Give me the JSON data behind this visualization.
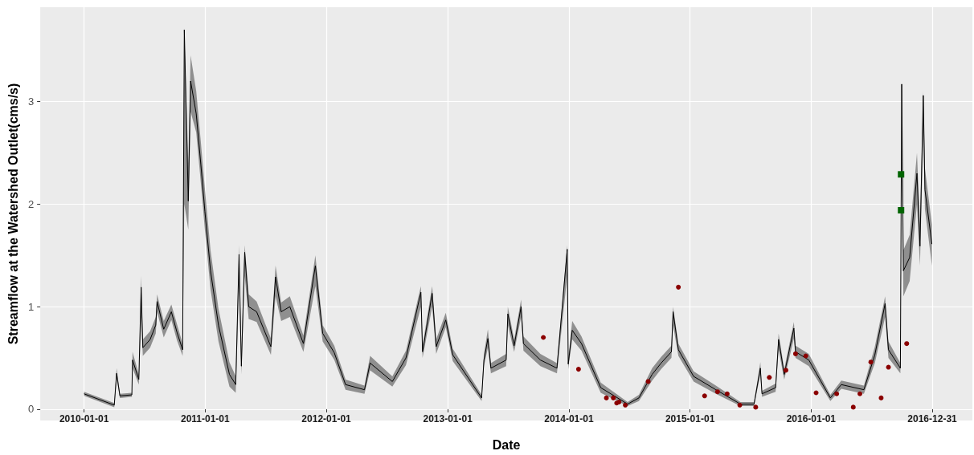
{
  "chart_data": {
    "type": "line",
    "xlabel": "Date",
    "ylabel": "Streamflow at the Watershed Outlet(cms/s)",
    "xlim": [
      "2009-08-22",
      "2017-05-01"
    ],
    "ylim": [
      -0.11,
      3.92
    ],
    "xticks": [
      "2010-01-01",
      "2011-01-01",
      "2012-01-01",
      "2013-01-01",
      "2014-01-01",
      "2015-01-01",
      "2016-01-01",
      "2016-12-31"
    ],
    "yticks": [
      0,
      1,
      2,
      3
    ],
    "grid": true,
    "series": [
      {
        "color": "#000000",
        "marker": "none",
        "x": [
          "2010-01-01",
          "2010-04-02",
          "2010-04-09",
          "2010-04-19",
          "2010-05-25",
          "2010-05-27",
          "2010-06-15",
          "2010-06-22",
          "2010-06-27",
          "2010-07-19",
          "2010-08-05",
          "2010-08-09",
          "2010-08-29",
          "2010-09-21",
          "2010-10-08",
          "2010-10-25",
          "2010-10-30",
          "2010-11-11",
          "2010-11-18",
          "2010-12-05",
          "2010-12-19",
          "2010-12-31",
          "2011-01-17",
          "2011-02-10",
          "2011-03-15",
          "2011-04-03",
          "2011-04-13",
          "2011-04-20",
          "2011-04-30",
          "2011-05-12",
          "2011-06-05",
          "2011-07-18",
          "2011-08-01",
          "2011-08-18",
          "2011-09-13",
          "2011-10-24",
          "2011-11-29",
          "2011-12-21",
          "2012-01-25",
          "2012-02-28",
          "2012-04-25",
          "2012-05-12",
          "2012-07-18",
          "2012-08-28",
          "2012-10-12",
          "2012-10-17",
          "2012-11-15",
          "2012-11-27",
          "2012-12-26",
          "2013-01-16",
          "2013-04-13",
          "2013-04-20",
          "2013-05-02",
          "2013-05-11",
          "2013-06-26",
          "2013-07-01",
          "2013-07-20",
          "2013-08-10",
          "2013-08-17",
          "2013-10-07",
          "2013-11-26",
          "2013-12-27",
          "2013-12-30",
          "2014-01-11",
          "2014-02-08",
          "2014-04-07",
          "2014-06-27",
          "2014-07-31",
          "2014-09-09",
          "2014-10-06",
          "2014-11-06",
          "2014-11-11",
          "2014-11-27",
          "2015-01-12",
          "2015-03-20",
          "2015-06-02",
          "2015-07-13",
          "2015-08-01",
          "2015-08-06",
          "2015-09-16",
          "2015-09-25",
          "2015-10-12",
          "2015-11-10",
          "2015-11-15",
          "2015-12-25",
          "2016-02-28",
          "2016-04-01",
          "2016-06-08",
          "2016-07-11",
          "2016-08-11",
          "2016-08-21",
          "2016-09-26",
          "2016-09-30",
          "2016-10-05",
          "2016-10-24",
          "2016-11-15",
          "2016-11-24",
          "2016-12-04",
          "2016-12-09",
          "2016-12-30"
        ],
        "values": [
          0.15,
          0.04,
          0.35,
          0.13,
          0.14,
          0.48,
          0.29,
          1.19,
          0.6,
          0.68,
          0.82,
          1.05,
          0.78,
          0.95,
          0.75,
          0.58,
          3.7,
          2.03,
          3.2,
          2.88,
          2.38,
          1.93,
          1.35,
          0.82,
          0.34,
          0.24,
          1.51,
          0.42,
          1.53,
          1.0,
          0.95,
          0.61,
          1.29,
          0.95,
          1.0,
          0.64,
          1.4,
          0.74,
          0.55,
          0.24,
          0.19,
          0.45,
          0.27,
          0.5,
          1.14,
          0.56,
          1.13,
          0.61,
          0.87,
          0.53,
          0.11,
          0.48,
          0.69,
          0.4,
          0.48,
          0.93,
          0.62,
          1.0,
          0.64,
          0.48,
          0.4,
          1.56,
          0.44,
          0.77,
          0.64,
          0.21,
          0.05,
          0.11,
          0.34,
          0.45,
          0.56,
          0.95,
          0.58,
          0.32,
          0.19,
          0.05,
          0.05,
          0.4,
          0.15,
          0.21,
          0.68,
          0.34,
          0.79,
          0.56,
          0.48,
          0.11,
          0.24,
          0.19,
          0.53,
          1.03,
          0.58,
          0.4,
          3.17,
          1.35,
          1.48,
          2.3,
          1.59,
          3.06,
          2.14,
          1.61
        ],
        "lower": [
          0.13,
          0.02,
          0.3,
          0.11,
          0.12,
          0.4,
          0.24,
          0.9,
          0.52,
          0.6,
          0.74,
          0.95,
          0.7,
          0.87,
          0.67,
          0.52,
          2.0,
          1.75,
          2.9,
          2.7,
          2.2,
          1.75,
          1.17,
          0.66,
          0.22,
          0.16,
          1.2,
          0.34,
          1.3,
          0.88,
          0.85,
          0.53,
          1.1,
          0.86,
          0.9,
          0.56,
          1.2,
          0.66,
          0.48,
          0.19,
          0.15,
          0.38,
          0.22,
          0.43,
          1.0,
          0.5,
          1.0,
          0.54,
          0.8,
          0.47,
          0.08,
          0.42,
          0.6,
          0.35,
          0.42,
          0.82,
          0.56,
          0.9,
          0.57,
          0.42,
          0.35,
          1.3,
          0.39,
          0.68,
          0.57,
          0.16,
          0.03,
          0.08,
          0.28,
          0.39,
          0.5,
          0.82,
          0.52,
          0.27,
          0.15,
          0.03,
          0.03,
          0.34,
          0.12,
          0.17,
          0.58,
          0.29,
          0.69,
          0.5,
          0.42,
          0.08,
          0.2,
          0.15,
          0.45,
          0.9,
          0.5,
          0.35,
          2.8,
          1.1,
          1.25,
          2.0,
          1.4,
          2.7,
          1.95,
          1.4
        ],
        "upper": [
          0.17,
          0.06,
          0.4,
          0.15,
          0.16,
          0.56,
          0.34,
          1.3,
          0.68,
          0.76,
          0.9,
          1.12,
          0.86,
          1.02,
          0.83,
          0.64,
          3.7,
          2.4,
          3.45,
          3.1,
          2.6,
          2.15,
          1.55,
          0.98,
          0.46,
          0.32,
          1.6,
          0.5,
          1.6,
          1.12,
          1.05,
          0.69,
          1.4,
          1.04,
          1.1,
          0.72,
          1.5,
          0.82,
          0.62,
          0.29,
          0.23,
          0.52,
          0.32,
          0.57,
          1.2,
          0.62,
          1.2,
          0.68,
          0.94,
          0.59,
          0.14,
          0.54,
          0.78,
          0.45,
          0.54,
          1.0,
          0.68,
          1.07,
          0.71,
          0.54,
          0.45,
          1.6,
          0.49,
          0.86,
          0.71,
          0.26,
          0.07,
          0.14,
          0.4,
          0.51,
          0.62,
          1.0,
          0.64,
          0.37,
          0.23,
          0.07,
          0.07,
          0.46,
          0.18,
          0.25,
          0.74,
          0.39,
          0.85,
          0.62,
          0.54,
          0.14,
          0.28,
          0.23,
          0.61,
          1.1,
          0.66,
          0.45,
          3.17,
          1.55,
          1.7,
          2.5,
          1.8,
          3.1,
          2.35,
          1.8
        ]
      },
      {
        "type": "scatter",
        "color": "#8b0000",
        "marker": "circle",
        "x": [
          "2013-10-16",
          "2014-01-30",
          "2014-04-24",
          "2014-05-15",
          "2014-05-25",
          "2014-06-01",
          "2014-06-20",
          "2014-08-28",
          "2014-11-27",
          "2015-02-14",
          "2015-03-25",
          "2015-04-23",
          "2015-05-31",
          "2015-07-18",
          "2015-08-28",
          "2015-10-17",
          "2015-11-15",
          "2015-12-16",
          "2016-01-16",
          "2016-03-18",
          "2016-05-07",
          "2016-05-27",
          "2016-06-29",
          "2016-07-30",
          "2016-08-21",
          "2016-10-15"
        ],
        "values": [
          0.7,
          0.39,
          0.11,
          0.11,
          0.06,
          0.07,
          0.04,
          0.27,
          1.19,
          0.13,
          0.17,
          0.15,
          0.04,
          0.02,
          0.31,
          0.38,
          0.54,
          0.52,
          0.16,
          0.15,
          0.02,
          0.15,
          0.46,
          0.11,
          0.41,
          0.64
        ]
      },
      {
        "type": "scatter",
        "color": "#006400",
        "marker": "square",
        "x": [
          "2016-09-28",
          "2016-09-28"
        ],
        "values": [
          2.29,
          1.94
        ]
      }
    ]
  }
}
